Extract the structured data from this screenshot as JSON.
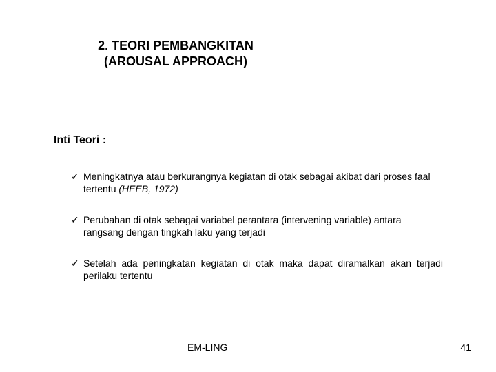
{
  "title_line1": "2. TEORI PEMBANGKITAN",
  "title_line2": "(AROUSAL APPROACH)",
  "subtitle": "Inti Teori :",
  "bullets": [
    {
      "text": "Meningkatnya atau berkurangnya kegiatan di otak sebagai akibat dari proses faal tertentu ",
      "italic": "(HEEB, 1972)",
      "justify": false
    },
    {
      "text": "Perubahan di otak sebagai variabel perantara (intervening variable) antara rangsang dengan tingkah laku yang terjadi",
      "italic": "",
      "justify": false
    },
    {
      "text": "Setelah ada peningkatan kegiatan di otak maka dapat diramalkan akan terjadi perilaku tertentu",
      "italic": "",
      "justify": true
    }
  ],
  "footer": "EM-LING",
  "page_number": "41",
  "checkmark": "✓"
}
